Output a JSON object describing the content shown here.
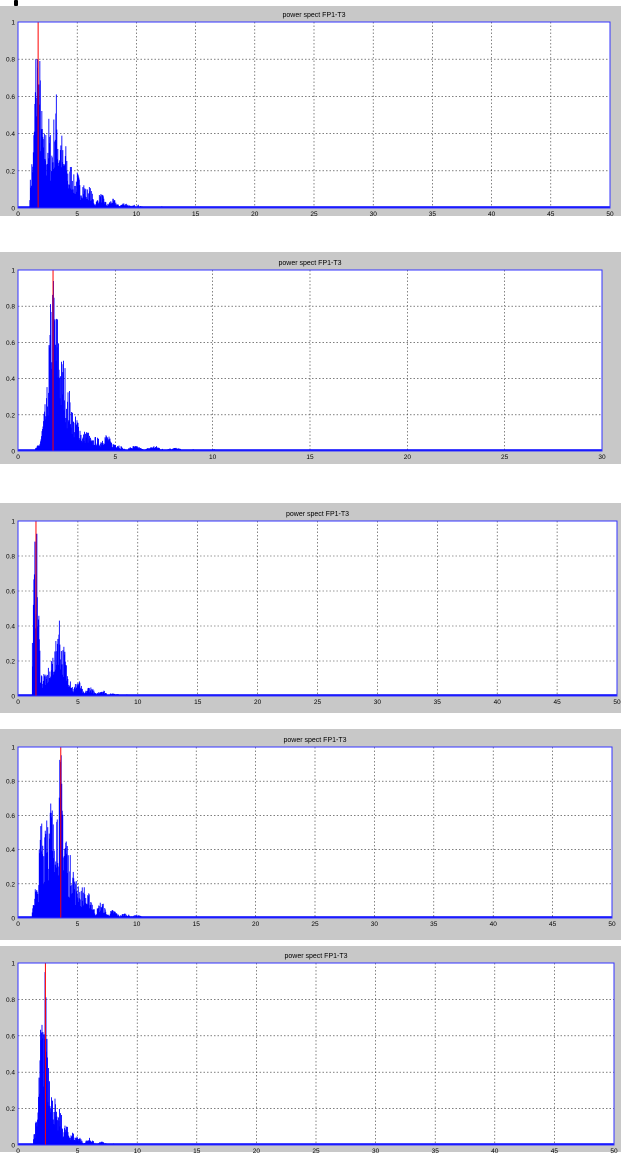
{
  "chart_data": [
    {
      "type": "area",
      "title": "power spect FP1-T3",
      "xlim": [
        0,
        50
      ],
      "ylim": [
        0,
        1
      ],
      "xticks": [
        0,
        5,
        10,
        15,
        20,
        25,
        30,
        35,
        40,
        45,
        50
      ],
      "yticks": [
        0,
        0.2,
        0.4,
        0.6,
        0.8,
        1
      ],
      "grid": true,
      "peaks": [
        [
          1.3,
          0.35
        ],
        [
          1.6,
          1.0
        ],
        [
          1.8,
          0.85
        ],
        [
          2.0,
          0.55
        ],
        [
          2.3,
          0.45
        ],
        [
          2.6,
          0.5
        ],
        [
          2.9,
          0.4
        ],
        [
          3.2,
          0.65
        ],
        [
          3.6,
          0.45
        ],
        [
          4.0,
          0.35
        ],
        [
          4.5,
          0.25
        ],
        [
          5.0,
          0.2
        ],
        [
          5.5,
          0.15
        ],
        [
          6.0,
          0.12
        ],
        [
          7.0,
          0.08
        ],
        [
          8.0,
          0.05
        ],
        [
          9.0,
          0.03
        ],
        [
          10.0,
          0.02
        ],
        [
          12.0,
          0.01
        ]
      ],
      "marker_x": 1.7
    },
    {
      "type": "area",
      "title": "power spect FP1-T3",
      "xlim": [
        0,
        30
      ],
      "ylim": [
        0,
        1
      ],
      "xticks": [
        0,
        5,
        10,
        15,
        20,
        25,
        30
      ],
      "yticks": [
        0,
        0.2,
        0.4,
        0.6,
        0.8,
        1
      ],
      "grid": true,
      "peaks": [
        [
          1.2,
          0.05
        ],
        [
          1.5,
          0.3
        ],
        [
          1.8,
          1.0
        ],
        [
          2.0,
          0.8
        ],
        [
          2.3,
          0.55
        ],
        [
          2.6,
          0.35
        ],
        [
          3.0,
          0.2
        ],
        [
          3.5,
          0.12
        ],
        [
          4.0,
          0.08
        ],
        [
          4.5,
          0.1
        ],
        [
          5.0,
          0.05
        ],
        [
          6.0,
          0.03
        ],
        [
          7.0,
          0.03
        ],
        [
          8.0,
          0.02
        ],
        [
          9.0,
          0.01
        ],
        [
          10.0,
          0.01
        ]
      ],
      "marker_x": 1.8
    },
    {
      "type": "area",
      "title": "power spect FP1-T3",
      "xlim": [
        0,
        50
      ],
      "ylim": [
        0,
        1
      ],
      "xticks": [
        0,
        5,
        10,
        15,
        20,
        25,
        30,
        35,
        40,
        45,
        50
      ],
      "yticks": [
        0,
        0.2,
        0.4,
        0.6,
        0.8,
        1
      ],
      "grid": true,
      "peaks": [
        [
          1.5,
          1.0
        ],
        [
          1.8,
          0.2
        ],
        [
          2.2,
          0.15
        ],
        [
          2.6,
          0.18
        ],
        [
          3.0,
          0.3
        ],
        [
          3.4,
          0.5
        ],
        [
          3.8,
          0.3
        ],
        [
          4.2,
          0.15
        ],
        [
          5.0,
          0.1
        ],
        [
          6.0,
          0.06
        ],
        [
          7.0,
          0.04
        ],
        [
          8.0,
          0.02
        ],
        [
          9.0,
          0.01
        ]
      ],
      "marker_x": 1.5
    },
    {
      "type": "area",
      "title": "power spect FP1-T3",
      "xlim": [
        0,
        50
      ],
      "ylim": [
        0,
        1
      ],
      "xticks": [
        0,
        5,
        10,
        15,
        20,
        25,
        30,
        35,
        40,
        45,
        50
      ],
      "yticks": [
        0,
        0.2,
        0.4,
        0.6,
        0.8,
        1
      ],
      "grid": true,
      "peaks": [
        [
          1.5,
          0.2
        ],
        [
          2.0,
          0.65
        ],
        [
          2.4,
          0.85
        ],
        [
          2.8,
          0.75
        ],
        [
          3.2,
          0.8
        ],
        [
          3.6,
          1.0
        ],
        [
          4.0,
          0.6
        ],
        [
          4.5,
          0.4
        ],
        [
          5.0,
          0.25
        ],
        [
          5.5,
          0.2
        ],
        [
          6.0,
          0.15
        ],
        [
          7.0,
          0.1
        ],
        [
          8.0,
          0.05
        ],
        [
          9.0,
          0.03
        ],
        [
          10.0,
          0.02
        ]
      ],
      "marker_x": 3.6
    },
    {
      "type": "area",
      "title": "power spect FP1-T3",
      "xlim": [
        0,
        50
      ],
      "ylim": [
        0,
        1
      ],
      "xticks": [
        0,
        5,
        10,
        15,
        20,
        25,
        30,
        35,
        40,
        45,
        50
      ],
      "yticks": [
        0,
        0.2,
        0.4,
        0.6,
        0.8,
        1
      ],
      "grid": true,
      "peaks": [
        [
          1.6,
          0.15
        ],
        [
          2.0,
          0.75
        ],
        [
          2.3,
          1.0
        ],
        [
          2.6,
          0.55
        ],
        [
          3.0,
          0.3
        ],
        [
          3.5,
          0.2
        ],
        [
          4.0,
          0.12
        ],
        [
          4.5,
          0.08
        ],
        [
          5.0,
          0.06
        ],
        [
          6.0,
          0.04
        ],
        [
          7.0,
          0.02
        ],
        [
          8.0,
          0.01
        ]
      ],
      "marker_x": 2.3
    }
  ]
}
